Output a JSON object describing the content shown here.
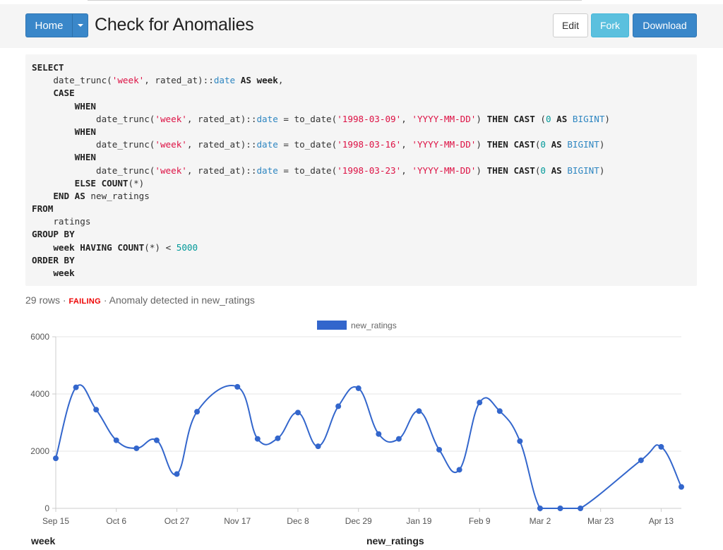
{
  "header": {
    "home_label": "Home",
    "title": "Check for Anomalies",
    "edit_label": "Edit",
    "fork_label": "Fork",
    "download_label": "Download"
  },
  "query": {
    "lines": [
      [
        {
          "t": "SELECT",
          "c": "kw"
        }
      ],
      [
        {
          "t": "    date_trunc(",
          "c": ""
        },
        {
          "t": "'week'",
          "c": "str"
        },
        {
          "t": ", rated_at)::",
          "c": ""
        },
        {
          "t": "date",
          "c": "typ"
        },
        {
          "t": " AS ",
          "c": "kw"
        },
        {
          "t": "week",
          "c": "kw"
        },
        {
          "t": ",",
          "c": ""
        }
      ],
      [
        {
          "t": "    CASE",
          "c": "kw"
        }
      ],
      [
        {
          "t": "        WHEN",
          "c": "kw"
        }
      ],
      [
        {
          "t": "            date_trunc(",
          "c": ""
        },
        {
          "t": "'week'",
          "c": "str"
        },
        {
          "t": ", rated_at)::",
          "c": ""
        },
        {
          "t": "date",
          "c": "typ"
        },
        {
          "t": " = to_date(",
          "c": ""
        },
        {
          "t": "'1998-03-09'",
          "c": "str"
        },
        {
          "t": ", ",
          "c": ""
        },
        {
          "t": "'YYYY-MM-DD'",
          "c": "str"
        },
        {
          "t": ") ",
          "c": ""
        },
        {
          "t": "THEN CAST",
          "c": "kw"
        },
        {
          "t": " (",
          "c": ""
        },
        {
          "t": "0",
          "c": "num"
        },
        {
          "t": " AS ",
          "c": "kw"
        },
        {
          "t": "BIGINT",
          "c": "typ"
        },
        {
          "t": ")",
          "c": ""
        }
      ],
      [
        {
          "t": "        WHEN",
          "c": "kw"
        }
      ],
      [
        {
          "t": "            date_trunc(",
          "c": ""
        },
        {
          "t": "'week'",
          "c": "str"
        },
        {
          "t": ", rated_at)::",
          "c": ""
        },
        {
          "t": "date",
          "c": "typ"
        },
        {
          "t": " = to_date(",
          "c": ""
        },
        {
          "t": "'1998-03-16'",
          "c": "str"
        },
        {
          "t": ", ",
          "c": ""
        },
        {
          "t": "'YYYY-MM-DD'",
          "c": "str"
        },
        {
          "t": ") ",
          "c": ""
        },
        {
          "t": "THEN CAST",
          "c": "kw"
        },
        {
          "t": "(",
          "c": ""
        },
        {
          "t": "0",
          "c": "num"
        },
        {
          "t": " AS ",
          "c": "kw"
        },
        {
          "t": "BIGINT",
          "c": "typ"
        },
        {
          "t": ")",
          "c": ""
        }
      ],
      [
        {
          "t": "        WHEN",
          "c": "kw"
        }
      ],
      [
        {
          "t": "            date_trunc(",
          "c": ""
        },
        {
          "t": "'week'",
          "c": "str"
        },
        {
          "t": ", rated_at)::",
          "c": ""
        },
        {
          "t": "date",
          "c": "typ"
        },
        {
          "t": " = to_date(",
          "c": ""
        },
        {
          "t": "'1998-03-23'",
          "c": "str"
        },
        {
          "t": ", ",
          "c": ""
        },
        {
          "t": "'YYYY-MM-DD'",
          "c": "str"
        },
        {
          "t": ") ",
          "c": ""
        },
        {
          "t": "THEN CAST",
          "c": "kw"
        },
        {
          "t": "(",
          "c": ""
        },
        {
          "t": "0",
          "c": "num"
        },
        {
          "t": " AS ",
          "c": "kw"
        },
        {
          "t": "BIGINT",
          "c": "typ"
        },
        {
          "t": ")",
          "c": ""
        }
      ],
      [
        {
          "t": "        ELSE COUNT",
          "c": "kw"
        },
        {
          "t": "(*)",
          "c": ""
        }
      ],
      [
        {
          "t": "    END AS",
          "c": "kw"
        },
        {
          "t": " new_ratings",
          "c": ""
        }
      ],
      [
        {
          "t": "FROM",
          "c": "kw"
        }
      ],
      [
        {
          "t": "    ratings",
          "c": ""
        }
      ],
      [
        {
          "t": "GROUP BY",
          "c": "kw"
        }
      ],
      [
        {
          "t": "    week HAVING COUNT",
          "c": "kw"
        },
        {
          "t": "(*) < ",
          "c": ""
        },
        {
          "t": "5000",
          "c": "num"
        }
      ],
      [
        {
          "t": "ORDER BY",
          "c": "kw"
        }
      ],
      [
        {
          "t": "    week",
          "c": "kw"
        }
      ]
    ]
  },
  "status": {
    "rows": "29 rows · ",
    "state": "FAILING",
    "message": " · Anomaly detected in new_ratings"
  },
  "chart_data": {
    "type": "line",
    "legend": "new_ratings",
    "legend_position": "top",
    "line_color": "#3366cc",
    "ylim": [
      0,
      6000
    ],
    "y_ticks": [
      0,
      2000,
      4000,
      6000
    ],
    "grid": true,
    "x": [
      "Sep 15",
      "Sep 22",
      "Sep 29",
      "Oct 6",
      "Oct 13",
      "Oct 20",
      "Oct 27",
      "Nov 3",
      "Nov 10",
      "Nov 17",
      "Nov 24",
      "Dec 1",
      "Dec 8",
      "Dec 15",
      "Dec 22",
      "Dec 29",
      "Jan 5",
      "Jan 12",
      "Jan 19",
      "Jan 26",
      "Feb 2",
      "Feb 9",
      "Feb 16",
      "Feb 23",
      "Mar 2",
      "Mar 9",
      "Mar 16",
      "Mar 23",
      "Mar 30",
      "Apr 6",
      "Apr 13",
      "Apr 20"
    ],
    "x_tick_labels": [
      "Sep 15",
      "Oct 6",
      "Oct 27",
      "Nov 17",
      "Dec 8",
      "Dec 29",
      "Jan 19",
      "Feb 9",
      "Mar 2",
      "Mar 23",
      "Apr 13"
    ],
    "points": [
      {
        "x": "Sep 15",
        "y": 1750
      },
      {
        "x": "Sep 22",
        "y": 4230
      },
      {
        "x": "Sep 29",
        "y": 3450
      },
      {
        "x": "Oct 6",
        "y": 2380
      },
      {
        "x": "Oct 13",
        "y": 2100
      },
      {
        "x": "Oct 20",
        "y": 2380
      },
      {
        "x": "Oct 27",
        "y": 1200
      },
      {
        "x": "Nov 3",
        "y": 3380
      },
      {
        "x": "Nov 17",
        "y": 4250
      },
      {
        "x": "Nov 24",
        "y": 2430
      },
      {
        "x": "Dec 1",
        "y": 2450
      },
      {
        "x": "Dec 8",
        "y": 3350
      },
      {
        "x": "Dec 15",
        "y": 2170
      },
      {
        "x": "Dec 22",
        "y": 3570
      },
      {
        "x": "Dec 29",
        "y": 4200
      },
      {
        "x": "Jan 5",
        "y": 2600
      },
      {
        "x": "Jan 12",
        "y": 2430
      },
      {
        "x": "Jan 19",
        "y": 3400
      },
      {
        "x": "Jan 26",
        "y": 2050
      },
      {
        "x": "Feb 2",
        "y": 1350
      },
      {
        "x": "Feb 9",
        "y": 3700
      },
      {
        "x": "Feb 16",
        "y": 3400
      },
      {
        "x": "Feb 23",
        "y": 2350
      },
      {
        "x": "Mar 2",
        "y": 0
      },
      {
        "x": "Mar 9",
        "y": 0
      },
      {
        "x": "Mar 16",
        "y": 0
      },
      {
        "x": "Apr 6",
        "y": 1680
      },
      {
        "x": "Apr 13",
        "y": 2150
      },
      {
        "x": "Apr 20",
        "y": 750
      }
    ],
    "xlabel": "week",
    "ylabel": "new_ratings"
  }
}
